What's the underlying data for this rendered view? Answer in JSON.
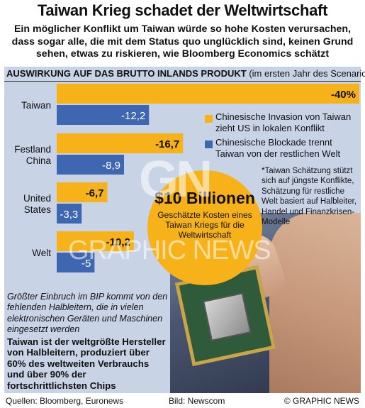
{
  "header": {
    "title": "Taiwan Krieg schadet der Weltwirtschaft",
    "subtitle": "Ein möglicher Konflikt um Taiwan würde so hohe Kosten verursachen, dass sogar alle, die mit dem Status quo unglücklich sind, keinen Grund sehen, etwas zu riskieren, wie Bloomberg Economics schätzt"
  },
  "section": {
    "title_bold": "AUSWIRKUNG AUF DAS BRUTTO INLANDS PRODUKT",
    "title_rest": "(im ersten Jahr des Scenario)*"
  },
  "colors": {
    "invasion": "#f7b21a",
    "blockade": "#3f66b0",
    "panel": "#c9d3e6"
  },
  "chart_data": {
    "type": "bar",
    "orientation": "horizontal",
    "categories": [
      "Taiwan",
      "Festland China",
      "United States",
      "Welt"
    ],
    "series": [
      {
        "name": "Chinesische Invasion von Taiwan zieht US in lokalen Konflikt",
        "values": [
          -40,
          -16.7,
          -6.7,
          -10.2
        ],
        "labels": [
          "-40%",
          "-16,7",
          "-6,7",
          "-10,2"
        ]
      },
      {
        "name": "Chinesische Blockade trennt Taiwan von der restlichen Welt",
        "values": [
          -12.2,
          -8.9,
          -3.3,
          -5
        ],
        "labels": [
          "-12,2",
          "-8,9",
          "-3,3",
          "-5"
        ]
      }
    ],
    "xlim": [
      -40,
      0
    ],
    "legend_position": "right"
  },
  "legend": {
    "invasion": [
      "Chinesische Invasion von Taiwan",
      "zieht US in lokalen Konflikt"
    ],
    "blockade": [
      "Chinesische Blockade trennt",
      "Taiwan von der restlichen Welt"
    ]
  },
  "footnote": "*Taiwan Schätzung stützt sich auf jüngste Konflikte, Schätzung für restliche Welt basiert auf Halbleiter, Handel und Finanzkrisen-Modelle",
  "callout": {
    "big": "$10 Billionen",
    "small": "Geschätzte Kosten eines Taiwan Kriegs für die Weltwirtschaft"
  },
  "notes": {
    "italic": "Größter Einbruch im BIP kommt von den fehlenden Halbleitern, die in vielen elektronischen Geräten und Maschinen eingesetzt werden",
    "fact": "Taiwan ist der weltgrößte Hersteller von Halbleitern, produziert über 60% des weltweiten Verbrauchs und über 90% der fortschrittlichsten Chips"
  },
  "watermark": {
    "logo": "GN",
    "text": "GRAPHIC NEWS"
  },
  "footer": {
    "sources": "Quellen: Bloomberg, Euronews",
    "image": "Bild: Newscom",
    "copyright": "© GRAPHIC NEWS"
  }
}
